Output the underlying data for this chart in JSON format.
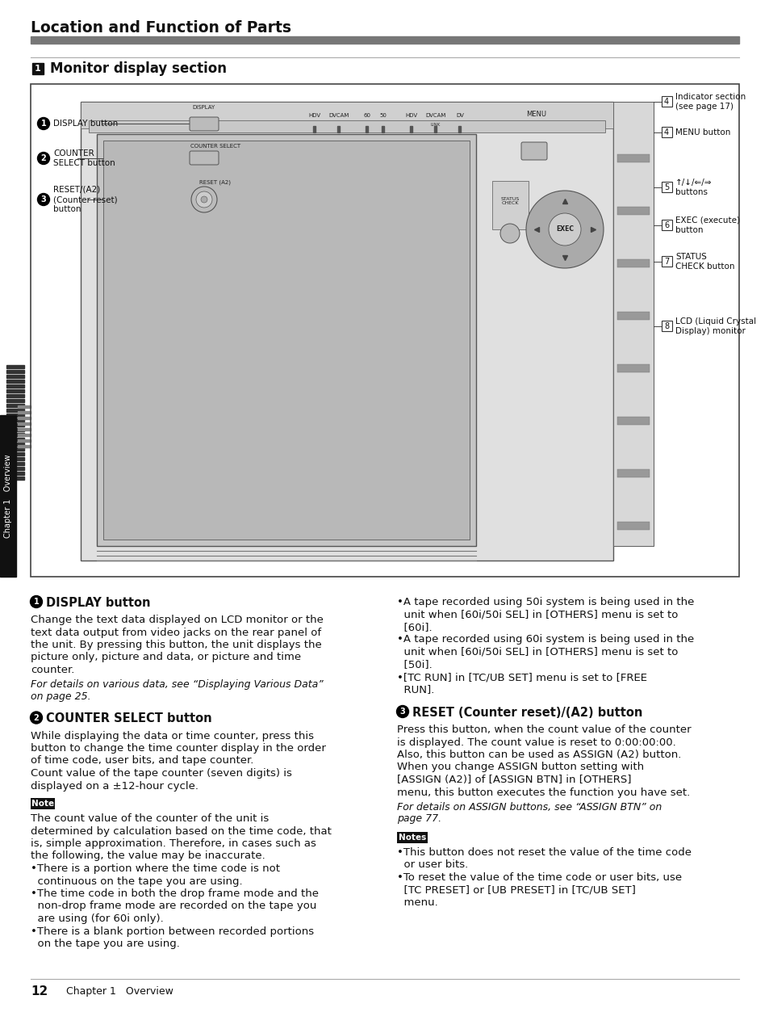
{
  "page_title": "Location and Function of Parts",
  "section_num": "1",
  "section_title": "Monitor display section",
  "bg_color": "#ffffff",
  "content": {
    "section1_heading_bold": "DISPLAY button",
    "section1_body": "Change the text data displayed on LCD monitor or the\ntext data output from video jacks on the rear panel of\nthe unit. By pressing this button, the unit displays the\npicture only, picture and data, or picture and time\ncounter.",
    "section1_italic": "For details on various data, see “Displaying Various Data”\non page 25.",
    "section2_heading_bold": "COUNTER SELECT button",
    "section2_body": "While displaying the data or time counter, press this\nbutton to change the time counter display in the order\nof time code, user bits, and tape counter.\nCount value of the tape counter (seven digits) is\ndisplayed on a ±12-hour cycle.",
    "note_label": "Note",
    "note_body": "The count value of the counter of the unit is\ndetermined by calculation based on the time code, that\nis, simple approximation. Therefore, in cases such as\nthe following, the value may be inaccurate.\n•There is a portion where the time code is not\n  continuous on the tape you are using.\n•The time code in both the drop frame mode and the\n  non-drop frame mode are recorded on the tape you\n  are using (for 60i only).\n•There is a blank portion between recorded portions\n  on the tape you are using.",
    "right_col_bullets": "•A tape recorded using 50i system is being used in the\n  unit when [60i/50i SEL] in [OTHERS] menu is set to\n  [60i].\n•A tape recorded using 60i system is being used in the\n  unit when [60i/50i SEL] in [OTHERS] menu is set to\n  [50i].\n•[TC RUN] in [TC/UB SET] menu is set to [FREE\n  RUN].",
    "section3_heading_bold": "RESET (Counter reset)/(A2) button",
    "section3_body": "Press this button, when the count value of the counter\nis displayed. The count value is reset to 0:00:00:00.\nAlso, this button can be used as ASSIGN (A2) button.\nWhen you change ASSIGN button setting with\n[ASSIGN (A2)] of [ASSIGN BTN] in [OTHERS]\nmenu, this button executes the function you have set.",
    "section3_italic": "For details on ASSIGN buttons, see “ASSIGN BTN” on\npage 77.",
    "notes_label": "Notes",
    "notes_body": "•This button does not reset the value of the time code\n  or user bits.\n•To reset the value of the time code or user bits, use\n  [TC PRESET] or [UB PRESET] in [TC/UB SET]\n  menu.",
    "page_num": "12",
    "page_footer": "Chapter 1   Overview"
  }
}
